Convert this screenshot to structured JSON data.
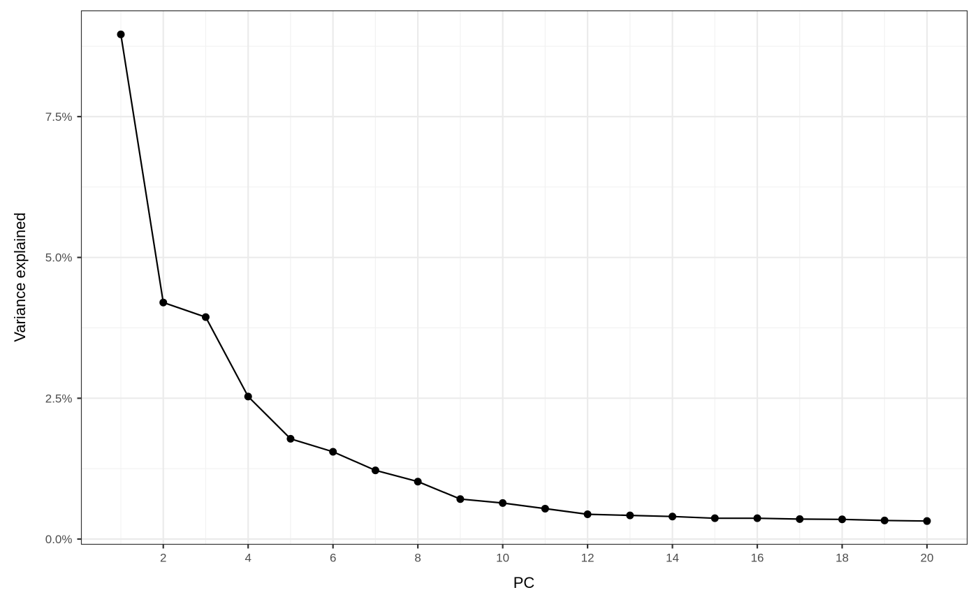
{
  "chart_data": {
    "type": "line",
    "title": "",
    "xlabel": "PC",
    "ylabel": "Variance explained",
    "x": [
      1,
      2,
      3,
      4,
      5,
      6,
      7,
      8,
      9,
      10,
      11,
      12,
      13,
      14,
      15,
      16,
      17,
      18,
      19,
      20
    ],
    "series": [
      {
        "name": "Variance explained",
        "values": [
          8.96,
          4.2,
          3.94,
          2.53,
          1.78,
          1.55,
          1.22,
          1.02,
          0.71,
          0.64,
          0.54,
          0.44,
          0.42,
          0.4,
          0.37,
          0.37,
          0.355,
          0.35,
          0.33,
          0.32
        ],
        "color": "#000000",
        "markers": true
      }
    ],
    "x_ticks": [
      2,
      4,
      6,
      8,
      10,
      12,
      14,
      16,
      18,
      20
    ],
    "x_tick_labels": [
      "2",
      "4",
      "6",
      "8",
      "10",
      "12",
      "14",
      "16",
      "18",
      "20"
    ],
    "y_ticks": [
      0,
      2.5,
      5.0,
      7.5
    ],
    "y_tick_labels": [
      "0.0%",
      "2.5%",
      "5.0%",
      "7.5%"
    ],
    "xlim": [
      0.05,
      20.95
    ],
    "ylim": [
      -0.1,
      9.38
    ],
    "grid": true,
    "legend": "none",
    "theme": "bw"
  },
  "colors": {
    "panel_border": "#333333",
    "grid_major": "#ebebeb",
    "grid_minor": "#f2f2f2",
    "line": "#000000",
    "tick_text": "#4d4d4d"
  }
}
